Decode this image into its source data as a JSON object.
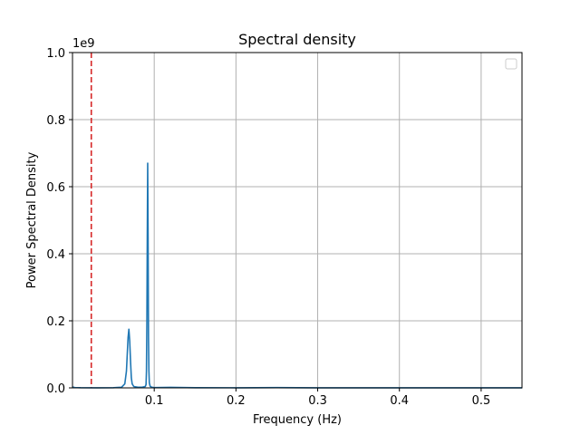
{
  "chart_data": {
    "type": "line",
    "title": "Spectral density",
    "xlabel": "Frequency (Hz)",
    "ylabel": "Power Spectral Density",
    "y_offset_label": "1e9",
    "xlim": [
      0.0,
      0.55
    ],
    "ylim": [
      0.0,
      1.0
    ],
    "x_ticks": [
      0.1,
      0.2,
      0.3,
      0.4,
      0.5
    ],
    "x_tick_labels": [
      "0.1",
      "0.2",
      "0.3",
      "0.4",
      "0.5"
    ],
    "y_ticks": [
      0.0,
      0.2,
      0.4,
      0.6,
      0.8,
      1.0
    ],
    "y_tick_labels": [
      "0.0",
      "0.2",
      "0.4",
      "0.6",
      "0.8",
      "1.0"
    ],
    "grid": true,
    "legend": "top-right",
    "legend_entries": [],
    "series": [
      {
        "color": "#1f77b4",
        "x": [
          0.0,
          0.001,
          0.003,
          0.01,
          0.03,
          0.05,
          0.06,
          0.064,
          0.066,
          0.067,
          0.068,
          0.069,
          0.07,
          0.071,
          0.072,
          0.073,
          0.075,
          0.08,
          0.085,
          0.089,
          0.09,
          0.0905,
          0.091,
          0.0915,
          0.092,
          0.0925,
          0.093,
          0.0935,
          0.094,
          0.095,
          0.097,
          0.1,
          0.12,
          0.15,
          0.2,
          0.25,
          0.3,
          0.35,
          0.4,
          0.45,
          0.5,
          0.55
        ],
        "y": [
          0.003,
          0.002,
          0.001,
          0.0005,
          0.0003,
          0.0005,
          0.002,
          0.012,
          0.05,
          0.1,
          0.15,
          0.175,
          0.14,
          0.08,
          0.03,
          0.012,
          0.004,
          0.002,
          0.002,
          0.004,
          0.01,
          0.05,
          0.2,
          0.45,
          0.67,
          0.45,
          0.15,
          0.05,
          0.015,
          0.005,
          0.002,
          0.001,
          0.0015,
          0.0005,
          0.0003,
          0.0008,
          0.0003,
          0.0002,
          0.0002,
          0.0002,
          0.0002,
          0.0002
        ]
      }
    ],
    "reference_lines": [
      {
        "orientation": "vertical",
        "x": 0.023,
        "color": "#d62728",
        "style": "dashed"
      }
    ]
  }
}
